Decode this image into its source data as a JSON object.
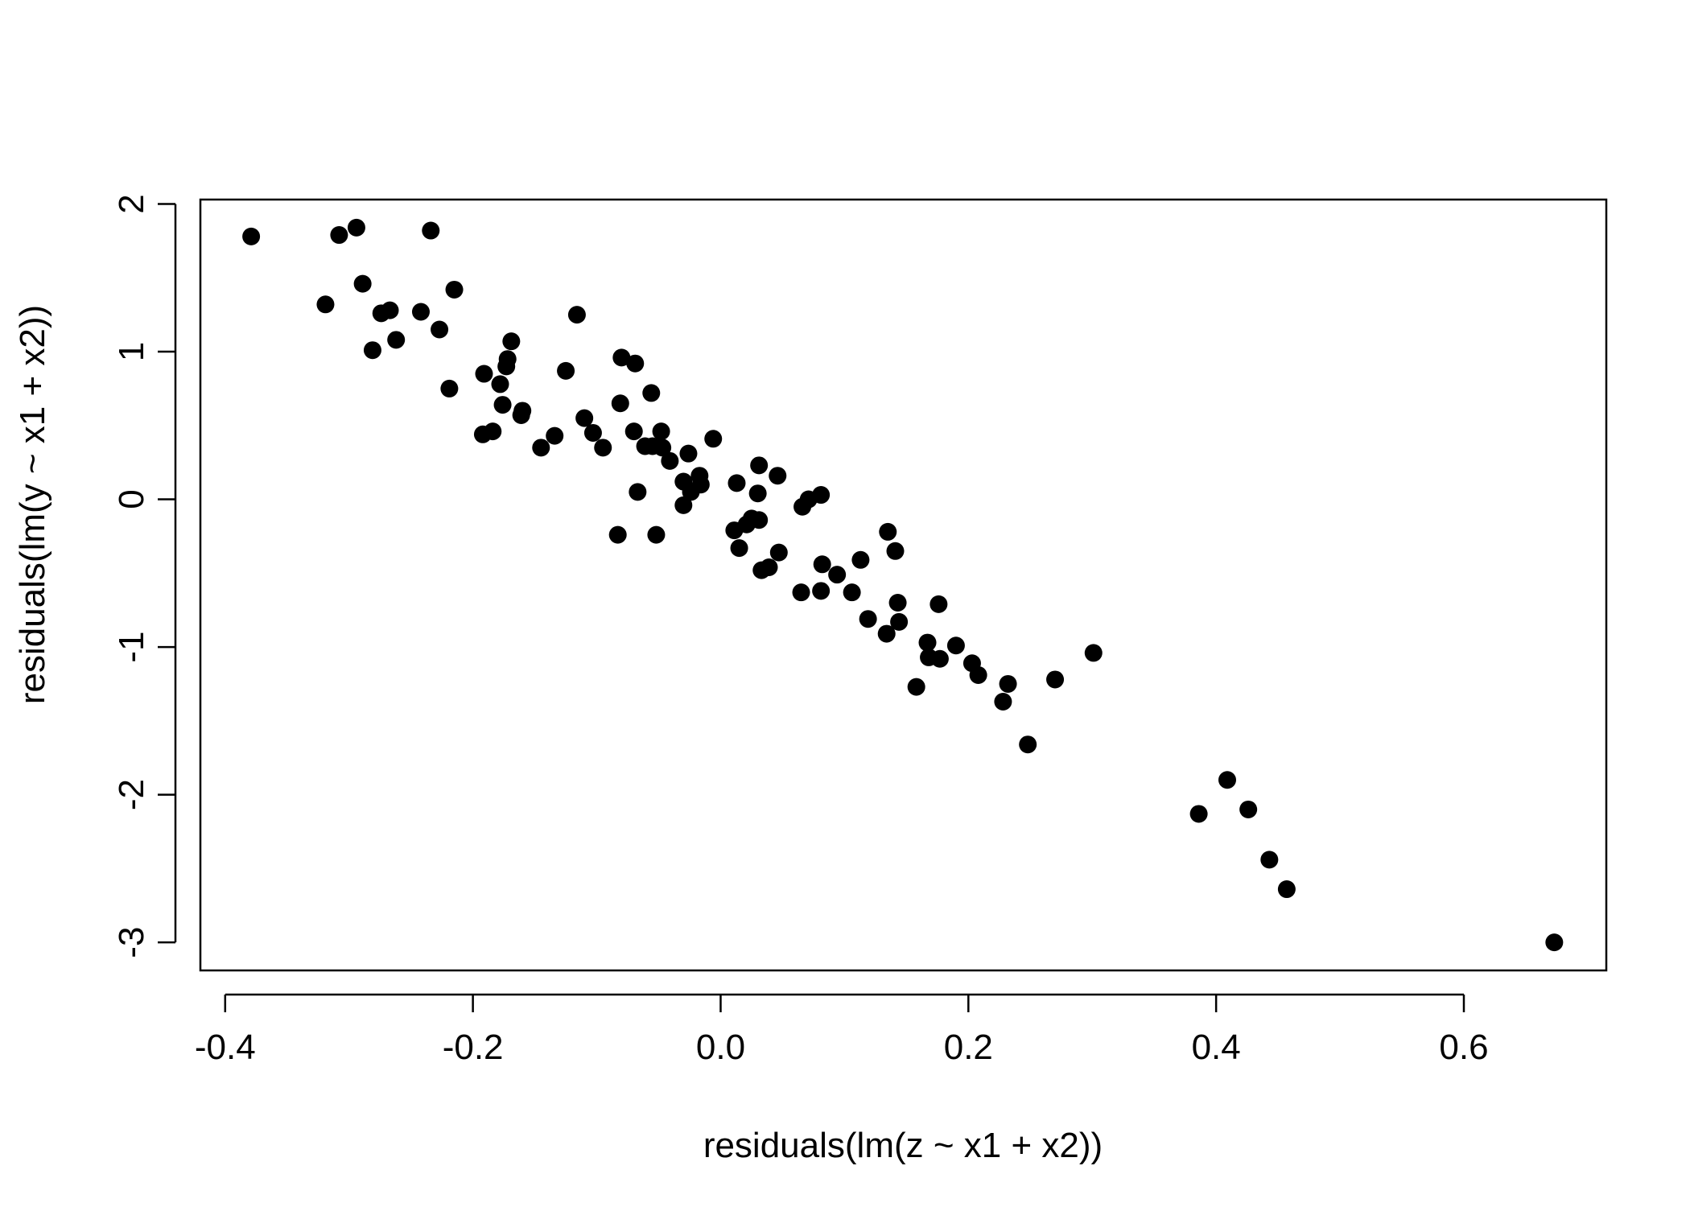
{
  "chart_data": {
    "type": "scatter",
    "title": "",
    "xlabel": "residuals(lm(z ~ x1 + x2))",
    "ylabel": "residuals(lm(y ~ x1 + x2))",
    "xlim": [
      -0.42,
      0.715
    ],
    "ylim": [
      -3.19,
      2.03
    ],
    "xticks": [
      -0.4,
      -0.2,
      0.0,
      0.2,
      0.4,
      0.6
    ],
    "xtick_labels": [
      "-0.4",
      "-0.2",
      "0.0",
      "0.2",
      "0.4",
      "0.6"
    ],
    "yticks": [
      2,
      1,
      0,
      -1,
      -2,
      -3
    ],
    "ytick_labels": [
      "2",
      "1",
      "0",
      "-1",
      "-2",
      "-3"
    ],
    "grid": false,
    "legend": "none",
    "marker_color": "#000000",
    "points": [
      [
        -0.379,
        1.78
      ],
      [
        -0.308,
        1.79
      ],
      [
        -0.294,
        1.84
      ],
      [
        -0.234,
        1.82
      ],
      [
        -0.319,
        1.32
      ],
      [
        -0.289,
        1.46
      ],
      [
        -0.274,
        1.26
      ],
      [
        -0.267,
        1.28
      ],
      [
        -0.242,
        1.27
      ],
      [
        -0.215,
        1.42
      ],
      [
        -0.281,
        1.01
      ],
      [
        -0.262,
        1.08
      ],
      [
        -0.227,
        1.15
      ],
      [
        -0.219,
        0.75
      ],
      [
        -0.191,
        0.85
      ],
      [
        -0.178,
        0.78
      ],
      [
        -0.169,
        1.07
      ],
      [
        -0.172,
        0.95
      ],
      [
        -0.173,
        0.9
      ],
      [
        -0.176,
        0.64
      ],
      [
        -0.16,
        0.6
      ],
      [
        -0.161,
        0.57
      ],
      [
        -0.192,
        0.44
      ],
      [
        -0.184,
        0.46
      ],
      [
        -0.134,
        0.43
      ],
      [
        -0.145,
        0.35
      ],
      [
        -0.125,
        0.87
      ],
      [
        -0.116,
        1.25
      ],
      [
        -0.11,
        0.55
      ],
      [
        -0.103,
        0.45
      ],
      [
        -0.095,
        0.35
      ],
      [
        -0.08,
        0.96
      ],
      [
        -0.081,
        0.65
      ],
      [
        -0.069,
        0.92
      ],
      [
        -0.056,
        0.72
      ],
      [
        -0.07,
        0.46
      ],
      [
        -0.061,
        0.36
      ],
      [
        -0.055,
        0.36
      ],
      [
        -0.048,
        0.46
      ],
      [
        -0.047,
        0.35
      ],
      [
        -0.041,
        0.26
      ],
      [
        -0.067,
        0.05
      ],
      [
        -0.083,
        -0.24
      ],
      [
        -0.052,
        -0.24
      ],
      [
        -0.026,
        0.31
      ],
      [
        -0.006,
        0.41
      ],
      [
        -0.03,
        0.12
      ],
      [
        -0.017,
        0.16
      ],
      [
        -0.024,
        0.05
      ],
      [
        -0.016,
        0.1
      ],
      [
        -0.03,
        -0.04
      ],
      [
        0.013,
        0.11
      ],
      [
        0.031,
        0.23
      ],
      [
        0.046,
        0.16
      ],
      [
        0.03,
        0.04
      ],
      [
        0.025,
        -0.13
      ],
      [
        0.021,
        -0.17
      ],
      [
        0.031,
        -0.14
      ],
      [
        0.011,
        -0.21
      ],
      [
        0.015,
        -0.33
      ],
      [
        0.047,
        -0.36
      ],
      [
        0.039,
        -0.46
      ],
      [
        0.033,
        -0.48
      ],
      [
        0.066,
        -0.05
      ],
      [
        0.071,
        0.0
      ],
      [
        0.081,
        0.03
      ],
      [
        0.135,
        -0.22
      ],
      [
        0.141,
        -0.35
      ],
      [
        0.113,
        -0.41
      ],
      [
        0.082,
        -0.44
      ],
      [
        0.094,
        -0.51
      ],
      [
        0.065,
        -0.63
      ],
      [
        0.081,
        -0.62
      ],
      [
        0.106,
        -0.63
      ],
      [
        0.143,
        -0.7
      ],
      [
        0.176,
        -0.71
      ],
      [
        0.119,
        -0.81
      ],
      [
        0.144,
        -0.83
      ],
      [
        0.134,
        -0.91
      ],
      [
        0.167,
        -0.97
      ],
      [
        0.19,
        -0.99
      ],
      [
        0.168,
        -1.07
      ],
      [
        0.177,
        -1.08
      ],
      [
        0.203,
        -1.11
      ],
      [
        0.208,
        -1.19
      ],
      [
        0.158,
        -1.27
      ],
      [
        0.232,
        -1.25
      ],
      [
        0.228,
        -1.37
      ],
      [
        0.27,
        -1.22
      ],
      [
        0.301,
        -1.04
      ],
      [
        0.248,
        -1.66
      ],
      [
        0.386,
        -2.13
      ],
      [
        0.409,
        -1.9
      ],
      [
        0.426,
        -2.1
      ],
      [
        0.443,
        -2.44
      ],
      [
        0.457,
        -2.64
      ],
      [
        0.673,
        -3.0
      ]
    ]
  }
}
